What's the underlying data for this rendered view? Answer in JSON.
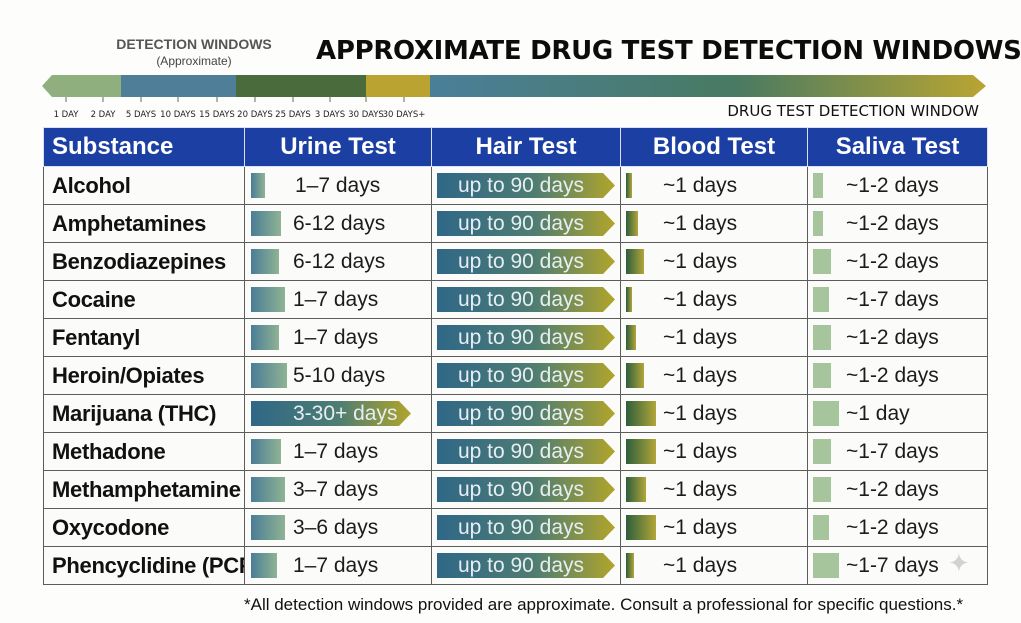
{
  "legend": {
    "title": "DETECTION WINDOWS",
    "subtitle": "(Approximate)",
    "tick_labels": [
      "1 DAY",
      "2 DAY",
      "5 DAYS",
      "10 DAYS",
      "15 DAYS",
      "20 DAYS",
      "25 DAYS",
      "3 DAYS",
      "30 DAYS",
      "30 DAYS+"
    ]
  },
  "title": "APPROXIMATE DRUG TEST DETECTION WINDOWS",
  "window_label": "DRUG TEST DETECTION WINDOW",
  "headers": {
    "substance": "Substance",
    "urine": "Urine Test",
    "hair": "Hair Test",
    "blood": "Blood Test",
    "saliva": "Saliva Test"
  },
  "footnote": "*All detection windows provided are approximate. Consult a professional for specific questions.*",
  "colors": {
    "header_bg": "#1c3fa3",
    "urine_bar": "#4a7d96",
    "hair_bar": "#2f6787",
    "blood_bar": "#2d5e3c",
    "saliva_bar": "#a7c59c"
  },
  "chart_data": {
    "type": "table",
    "columns": [
      "Substance",
      "Urine Test",
      "Hair Test",
      "Blood Test",
      "Saliva Test"
    ],
    "rows": [
      {
        "substance": "Alcohol",
        "urine": "1–7 days",
        "hair": "up to 90 days",
        "blood": "~1 days",
        "saliva": "~1-2 days"
      },
      {
        "substance": "Amphetamines",
        "urine": "6-12 days",
        "hair": "up to 90 days",
        "blood": "~1 days",
        "saliva": "~1-2 days"
      },
      {
        "substance": "Benzodiazepines",
        "urine": "6-12 days",
        "hair": "up to 90 days",
        "blood": "~1 days",
        "saliva": "~1-2 days"
      },
      {
        "substance": "Cocaine",
        "urine": "1–7 days",
        "hair": "up to 90 days",
        "blood": "~1 days",
        "saliva": "~1-7 days"
      },
      {
        "substance": "Fentanyl",
        "urine": "1–7 days",
        "hair": "up to 90 days",
        "blood": "~1 days",
        "saliva": "~1-2 days"
      },
      {
        "substance": "Heroin/Opiates",
        "urine": "5-10 days",
        "hair": "up to 90 days",
        "blood": "~1 days",
        "saliva": "~1-2 days"
      },
      {
        "substance": "Marijuana (THC)",
        "urine": "3-30+ days",
        "hair": "up to 90 days",
        "blood": "~1 days",
        "saliva": "~1 day"
      },
      {
        "substance": "Methadone",
        "urine": "1–7 days",
        "hair": "up to 90 days",
        "blood": "~1 days",
        "saliva": "~1-7 days"
      },
      {
        "substance": "Methamphetamine",
        "urine": "3–7 days",
        "hair": "up to 90 days",
        "blood": "~1 days",
        "saliva": "~1-2 days"
      },
      {
        "substance": "Oxycodone",
        "urine": "3–6 days",
        "hair": "up to 90 days",
        "blood": "~1 days",
        "saliva": "~1-2 days"
      },
      {
        "substance": "Phencyclidine (PCP)",
        "urine": "1–7 days",
        "hair": "up to 90 days",
        "blood": "~1 days",
        "saliva": "~1-7 days"
      }
    ]
  }
}
